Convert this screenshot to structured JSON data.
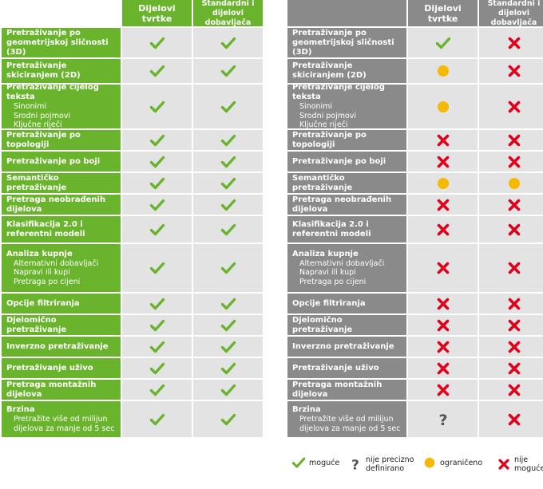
{
  "headers": {
    "col1": "Dijelovi tvrtke",
    "col2_line1": "Standardni i",
    "col2_line2": "dijelovi dobavljača"
  },
  "colors": {
    "green_dark": "#6ab42d",
    "green_light": "#e3e3e3",
    "gray_dark": "#8a8a8a",
    "gray_light": "#e3e3e3",
    "check": "#6ab42d",
    "cross": "#e2001a",
    "limited": "#f6b800",
    "question": "#555555"
  },
  "rows": [
    {
      "title": [
        "Pretraživanje po",
        "geometrijskoj sličnosti (3D)"
      ],
      "subs": [],
      "left": [
        "check",
        "check"
      ],
      "right": [
        "check",
        "cross"
      ]
    },
    {
      "title": [
        "Pretraživanje",
        "skiciranjem (2D)"
      ],
      "subs": [],
      "left": [
        "check",
        "check"
      ],
      "right": [
        "limited",
        "cross"
      ]
    },
    {
      "title": [
        "Pretraživanje cijelog teksta"
      ],
      "subs": [
        "Sinonimi",
        "Srodni pojmovi",
        "Ključne riječi"
      ],
      "left": [
        "check",
        "check"
      ],
      "right": [
        "limited",
        "cross"
      ]
    },
    {
      "title": [
        "Pretraživanje po topologiji"
      ],
      "subs": [],
      "left": [
        "check",
        "check"
      ],
      "right": [
        "cross",
        "cross"
      ]
    },
    {
      "title": [
        "Pretraživanje po boji"
      ],
      "subs": [],
      "left": [
        "check",
        "check"
      ],
      "right": [
        "cross",
        "cross"
      ]
    },
    {
      "title": [
        "Semantičko pretraživanje"
      ],
      "subs": [],
      "left": [
        "check",
        "check"
      ],
      "right": [
        "limited",
        "limited"
      ]
    },
    {
      "title": [
        "Pretraga neobrađenih dijelova"
      ],
      "subs": [],
      "left": [
        "check",
        "check"
      ],
      "right": [
        "cross",
        "cross"
      ]
    },
    {
      "title": [
        "Klasifikacija 2.0 i",
        "referentni modeli"
      ],
      "subs": [],
      "left": [
        "check",
        "check"
      ],
      "right": [
        "cross",
        "cross"
      ]
    },
    {
      "title": [
        "Analiza kupnje"
      ],
      "subs": [
        "Alternativni dobavljači",
        "Napravi ili kupi",
        "Pretraga po cijeni"
      ],
      "left": [
        "check",
        "check"
      ],
      "right": [
        "cross",
        "cross"
      ]
    },
    {
      "title": [
        "Opcije filtriranja"
      ],
      "subs": [],
      "left": [
        "check",
        "check"
      ],
      "right": [
        "cross",
        "cross"
      ]
    },
    {
      "title": [
        "Djelomično pretraživanje"
      ],
      "subs": [],
      "left": [
        "check",
        "check"
      ],
      "right": [
        "cross",
        "cross"
      ]
    },
    {
      "title": [
        "Inverzno pretraživanje"
      ],
      "subs": [],
      "left": [
        "check",
        "check"
      ],
      "right": [
        "cross",
        "cross"
      ]
    },
    {
      "title": [
        "Pretraživanje uživo"
      ],
      "subs": [],
      "left": [
        "check",
        "check"
      ],
      "right": [
        "cross",
        "cross"
      ]
    },
    {
      "title": [
        "Pretraga montažnih dijelova"
      ],
      "subs": [],
      "left": [
        "check",
        "check"
      ],
      "right": [
        "cross",
        "cross"
      ]
    },
    {
      "title": [
        "Brzina"
      ],
      "subs": [
        "Pretražite više od milijun",
        "dijelova za manje od 5 sec"
      ],
      "left": [
        "check",
        "check"
      ],
      "right": [
        "question",
        "cross"
      ]
    }
  ],
  "legend": [
    {
      "icon": "check",
      "lines": [
        "moguće"
      ]
    },
    {
      "icon": "question",
      "lines": [
        "nije precizno",
        "definirano"
      ]
    },
    {
      "icon": "limited",
      "lines": [
        "ograničeno"
      ]
    },
    {
      "icon": "cross",
      "lines": [
        "nije",
        "moguće"
      ]
    }
  ]
}
